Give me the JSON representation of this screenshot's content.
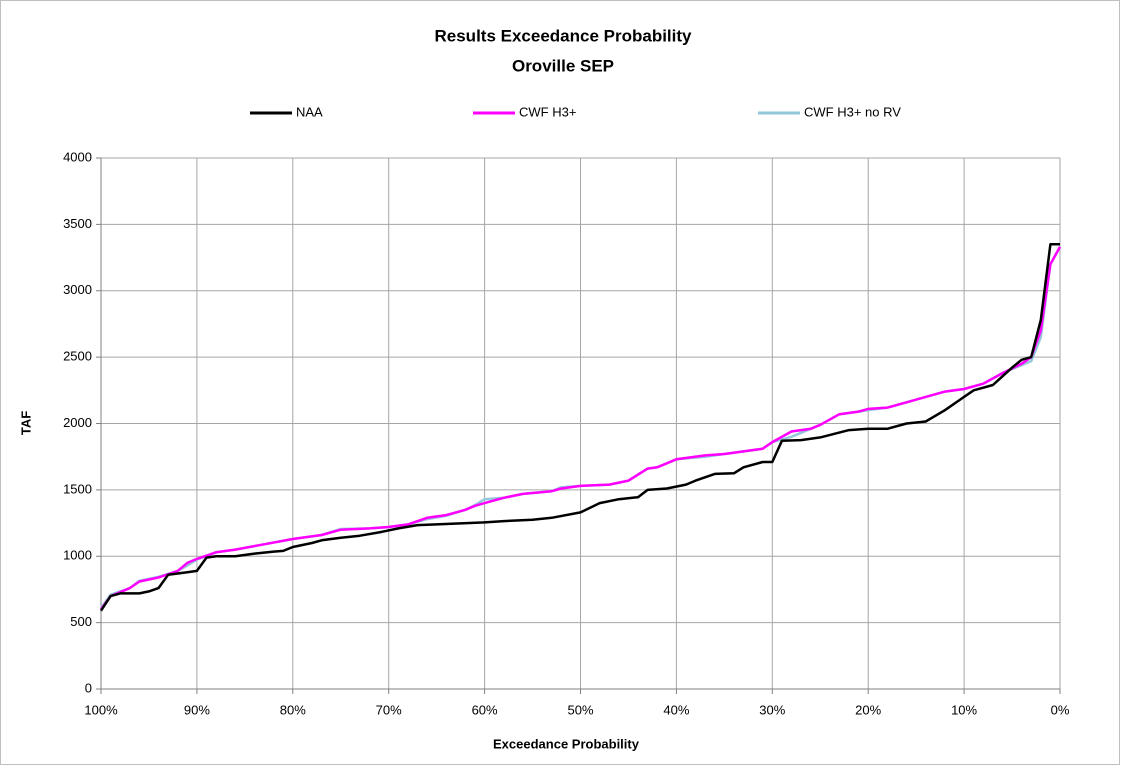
{
  "chart_data": {
    "type": "line",
    "title": "Results Exceedance Probability",
    "subtitle": "Oroville  SEP",
    "xlabel": "Exceedance Probability",
    "ylabel": "TAF",
    "xlim": [
      100,
      0
    ],
    "ylim": [
      0,
      4000
    ],
    "xticks": [
      {
        "value": 100,
        "label": "100%"
      },
      {
        "value": 90,
        "label": "90%"
      },
      {
        "value": 80,
        "label": "80%"
      },
      {
        "value": 70,
        "label": "70%"
      },
      {
        "value": 60,
        "label": "60%"
      },
      {
        "value": 50,
        "label": "50%"
      },
      {
        "value": 40,
        "label": "40%"
      },
      {
        "value": 30,
        "label": "30%"
      },
      {
        "value": 20,
        "label": "20%"
      },
      {
        "value": 10,
        "label": "10%"
      },
      {
        "value": 0,
        "label": "0%"
      }
    ],
    "yticks": [
      0,
      500,
      1000,
      1500,
      2000,
      2500,
      3000,
      3500,
      4000
    ],
    "grid": true,
    "legend": "top",
    "series": [
      {
        "name": "NAA",
        "color": "#000000",
        "x": [
          100,
          99,
          98,
          96,
          95,
          94,
          93,
          92,
          91,
          90,
          89,
          88,
          86,
          84,
          82,
          81,
          80,
          78,
          77,
          75,
          73,
          71,
          69,
          67,
          65,
          60,
          58,
          55,
          53,
          50,
          48,
          46,
          44,
          43,
          41,
          39,
          38,
          36,
          34,
          33,
          31,
          30,
          29,
          27,
          25,
          22,
          20,
          18,
          16,
          14,
          12,
          10,
          9,
          7,
          5,
          4,
          3,
          2,
          1,
          0
        ],
        "values": [
          590,
          700,
          720,
          720,
          735,
          760,
          860,
          870,
          880,
          890,
          990,
          1000,
          1000,
          1020,
          1035,
          1040,
          1070,
          1100,
          1120,
          1140,
          1155,
          1180,
          1210,
          1235,
          1240,
          1255,
          1265,
          1275,
          1290,
          1330,
          1400,
          1430,
          1445,
          1500,
          1510,
          1540,
          1570,
          1620,
          1625,
          1670,
          1710,
          1710,
          1870,
          1875,
          1895,
          1950,
          1960,
          1960,
          2000,
          2015,
          2100,
          2200,
          2250,
          2290,
          2420,
          2480,
          2500,
          2780,
          3350,
          3350
        ]
      },
      {
        "name": "CWF H3+",
        "color": "#ff00ff",
        "x": [
          100,
          99,
          97,
          96,
          94,
          92,
          91,
          90,
          88,
          86,
          83,
          80,
          77,
          75,
          72,
          70,
          68,
          66,
          64,
          62,
          61,
          60,
          58,
          56,
          53,
          52,
          50,
          47,
          45,
          43,
          42,
          40,
          37,
          35,
          33,
          31,
          30,
          28,
          26,
          25,
          23,
          21,
          20,
          18,
          16,
          14,
          12,
          10,
          8,
          6,
          4,
          3,
          2,
          1,
          0
        ],
        "values": [
          600,
          700,
          760,
          810,
          840,
          890,
          950,
          980,
          1030,
          1050,
          1090,
          1130,
          1160,
          1200,
          1210,
          1220,
          1240,
          1290,
          1310,
          1350,
          1380,
          1400,
          1440,
          1470,
          1490,
          1510,
          1530,
          1540,
          1570,
          1660,
          1670,
          1730,
          1760,
          1770,
          1790,
          1810,
          1860,
          1940,
          1960,
          1990,
          2070,
          2090,
          2110,
          2120,
          2160,
          2200,
          2240,
          2260,
          2300,
          2380,
          2450,
          2500,
          2700,
          3200,
          3330
        ]
      },
      {
        "name": "CWF H3+ no RV",
        "color": "#93c7dc",
        "x": [
          100,
          99,
          97,
          96,
          94,
          92,
          91,
          90,
          88,
          86,
          83,
          80,
          77,
          75,
          72,
          70,
          68,
          66,
          64,
          62,
          61,
          60,
          58,
          56,
          53,
          52,
          50,
          47,
          45,
          43,
          42,
          40,
          37,
          35,
          33,
          31,
          30,
          28,
          26,
          25,
          23,
          21,
          20,
          18,
          16,
          14,
          12,
          10,
          8,
          6,
          4,
          3,
          2,
          1,
          0
        ],
        "values": [
          610,
          710,
          760,
          815,
          845,
          890,
          930,
          975,
          1030,
          1050,
          1090,
          1130,
          1160,
          1205,
          1210,
          1220,
          1240,
          1280,
          1305,
          1350,
          1385,
          1430,
          1440,
          1470,
          1490,
          1520,
          1530,
          1540,
          1570,
          1660,
          1670,
          1730,
          1750,
          1770,
          1790,
          1810,
          1860,
          1900,
          1960,
          1990,
          2070,
          2090,
          2100,
          2120,
          2160,
          2200,
          2240,
          2260,
          2300,
          2380,
          2440,
          2470,
          2650,
          3200,
          3330
        ]
      }
    ]
  }
}
